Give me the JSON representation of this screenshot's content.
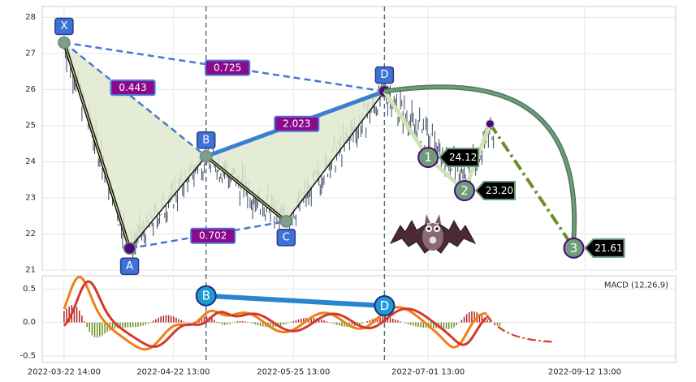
{
  "chart_data": [
    {
      "type": "line",
      "description_role": "price panel with harmonic XABCD pattern",
      "ylim": [
        21,
        28.3
      ],
      "yticks": [
        "21",
        "22",
        "23",
        "24",
        "25",
        "26",
        "27",
        "28"
      ],
      "xtick_labels": [
        "2022-03-22 14:00",
        "2022-04-22 13:00",
        "2022-05-25 13:00",
        "2022-07-01 13:00",
        "2022-09-12 13:00"
      ],
      "xticks": [
        0,
        30,
        63,
        100,
        143
      ],
      "xlim": [
        -6,
        168
      ],
      "points": [
        {
          "name": "X",
          "x": 0,
          "y": 27.3
        },
        {
          "name": "A",
          "x": 18,
          "y": 21.6
        },
        {
          "name": "B",
          "x": 39,
          "y": 24.15
        },
        {
          "name": "C",
          "x": 61,
          "y": 22.35
        },
        {
          "name": "D",
          "x": 88,
          "y": 25.95
        }
      ],
      "ratios": [
        {
          "label": "0.443",
          "x": 18,
          "y": 26.05
        },
        {
          "label": "0.725",
          "x": 44,
          "y": 26.6
        },
        {
          "label": "2.023",
          "x": 63,
          "y": 25.05
        },
        {
          "label": "0.702",
          "x": 40,
          "y": 21.95
        }
      ],
      "targets": [
        {
          "step": "1",
          "value": "24.12",
          "x": 100,
          "y": 24.12
        },
        {
          "step": "2",
          "value": "23.20",
          "x": 110,
          "y": 23.2
        },
        {
          "step": "3",
          "value": "21.61",
          "x": 140,
          "y": 21.61
        }
      ],
      "projection_start": {
        "x": 117,
        "y": 25.05
      },
      "colors": {
        "triangle_fill": "#dfe9cf",
        "triangle_edge": "#f0f5a8",
        "dashed": "#4a76d4",
        "bd_line": "#3a7fd0",
        "ratio_box": "#8a0a8a",
        "point_box": "#3f72d6",
        "vertical": "#5a6c80",
        "candles": "#3b4a5e",
        "arc": "#6e9c7c",
        "target_path": "#cfe3b4",
        "olive": "#6b8e23",
        "dark_purple": "#4b0a7a"
      }
    },
    {
      "type": "line",
      "description_role": "MACD panel",
      "legend": "MACD (12,26,9)",
      "ylim": [
        -0.6,
        0.7
      ],
      "yticks": [
        "-0.5",
        "0.0",
        "0.5"
      ],
      "macd_points": [
        {
          "name": "B",
          "x": 39,
          "y": 0.4
        },
        {
          "name": "D",
          "x": 88,
          "y": 0.25
        }
      ],
      "colors": {
        "macd": "#f07f16",
        "signal": "#d33a2c",
        "hist_pos": "#b22222",
        "hist_neg": "#6b8e23",
        "bd": "#2a85d0",
        "marker": "#1f9ad6"
      }
    }
  ]
}
